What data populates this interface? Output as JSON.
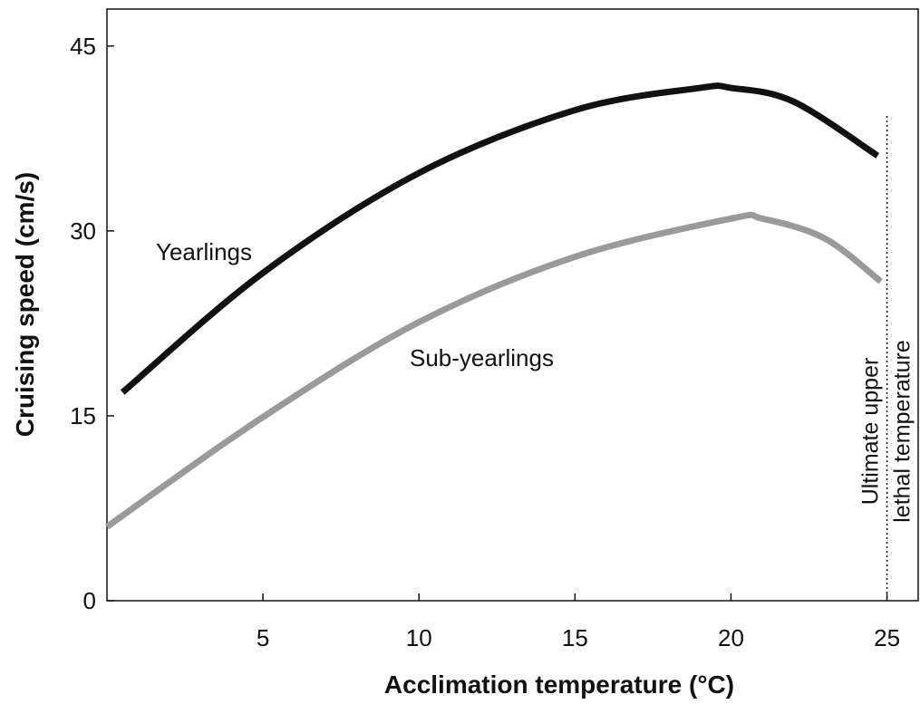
{
  "chart_data": {
    "type": "line",
    "xlabel": "Acclimation temperature (°C)",
    "ylabel": "Cruising speed (cm/s)",
    "xlim": [
      0,
      26
    ],
    "ylim": [
      0,
      48
    ],
    "xticks": [
      5,
      10,
      15,
      20,
      25
    ],
    "yticks": [
      0,
      15,
      30,
      45
    ],
    "series": [
      {
        "name": "Yearlings",
        "color": "#111111",
        "x": [
          0.5,
          5,
          10,
          15,
          19,
          20,
          22,
          24.7
        ],
        "values": [
          16.9,
          26.6,
          34.7,
          39.8,
          41.6,
          41.6,
          40.5,
          36.1
        ]
      },
      {
        "name": "Sub-yearlings",
        "color": "#9a9a9a",
        "x": [
          0,
          5,
          10,
          15,
          20,
          21,
          23,
          24.8
        ],
        "values": [
          6.0,
          14.9,
          22.6,
          27.9,
          31.0,
          31.0,
          29.4,
          25.9
        ]
      }
    ],
    "reference_line": {
      "x": 25,
      "label_lines": [
        "Ultimate upper",
        "lethal temperature"
      ]
    }
  }
}
